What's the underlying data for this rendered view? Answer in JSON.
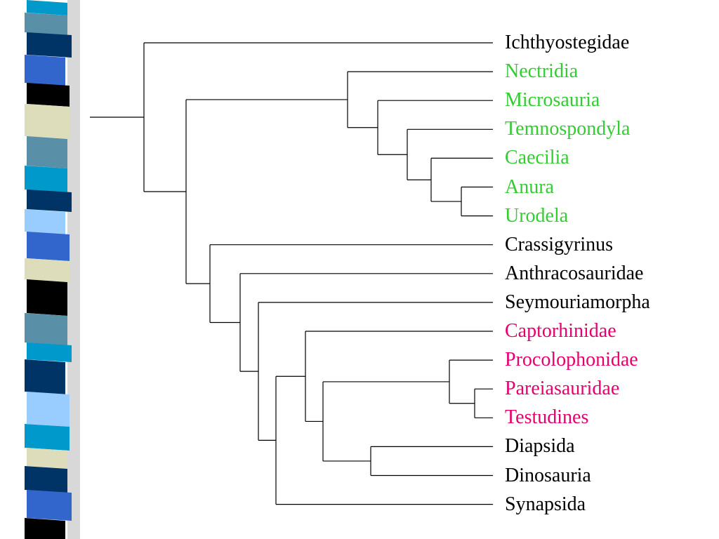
{
  "palette": {
    "stripe": [
      "#0099cc",
      "#5a8fa8",
      "#003366",
      "#3366cc",
      "#000000",
      "#ddddbb",
      "#99ccff"
    ],
    "line": "#000000"
  },
  "taxa": [
    {
      "label": "Ichthyostegidae",
      "color": "#000000"
    },
    {
      "label": "Nectridia",
      "color": "#33cc33"
    },
    {
      "label": "Microsauria",
      "color": "#33cc33"
    },
    {
      "label": "Temnospondyla",
      "color": "#33cc33"
    },
    {
      "label": "Caecilia",
      "color": "#33cc33"
    },
    {
      "label": "Anura",
      "color": "#33cc33"
    },
    {
      "label": "Urodela",
      "color": "#33cc33"
    },
    {
      "label": "Crassigyrinus",
      "color": "#000000"
    },
    {
      "label": "Anthracosauridae",
      "color": "#000000"
    },
    {
      "label": "Seymouriamorpha",
      "color": "#000000"
    },
    {
      "label": "Captorhinidae",
      "color": "#e6006e"
    },
    {
      "label": "Procolophonidae",
      "color": "#e6006e"
    },
    {
      "label": "Pareiasauridae",
      "color": "#e6006e"
    },
    {
      "label": "Testudines",
      "color": "#e6006e"
    },
    {
      "label": "Diapsida",
      "color": "#000000"
    },
    {
      "label": "Dinosauria",
      "color": "#000000"
    },
    {
      "label": "Synapsida",
      "color": "#000000"
    }
  ]
}
